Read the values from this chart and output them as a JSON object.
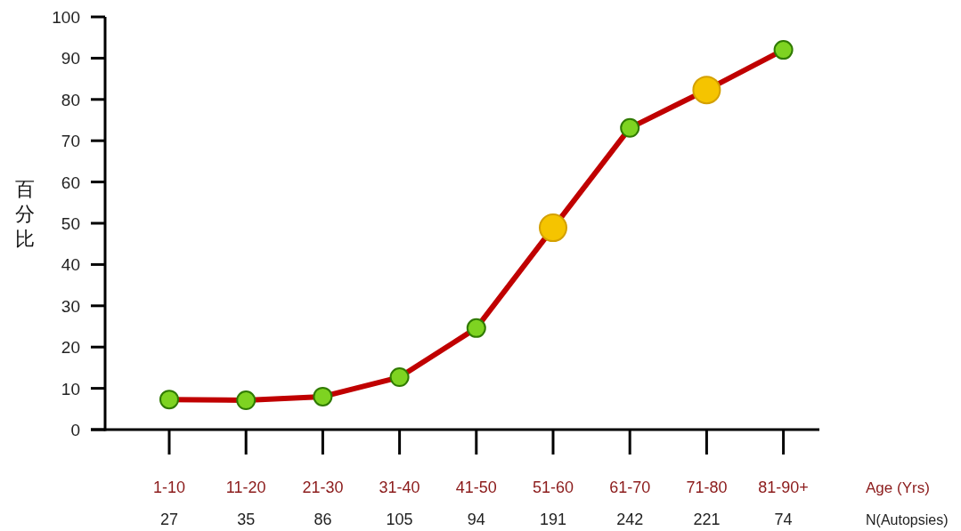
{
  "chart_data": {
    "type": "line",
    "ylabel": "百分比",
    "xlabel": "Age (Yrs)",
    "categories": [
      "1-10",
      "11-20",
      "21-30",
      "31-40",
      "41-50",
      "51-60",
      "61-70",
      "71-80",
      "81-90+"
    ],
    "series": [
      {
        "color": "#c00000",
        "values": [
          7.3,
          7.1,
          8.0,
          12.7,
          24.6,
          48.9,
          73.1,
          82.3,
          92.0
        ],
        "colors": [
          "#7ed321",
          "#7ed321",
          "#7ed321",
          "#7ed321",
          "#7ed321",
          "#f5c400",
          "#7ed321",
          "#f5c400",
          "#7ed321"
        ]
      }
    ],
    "ylim": [
      0,
      100
    ],
    "yticks": [
      0,
      10,
      20,
      30,
      40,
      50,
      60,
      70,
      80,
      90,
      100
    ],
    "marker": "circle",
    "line_style": "solid",
    "grid": false,
    "annotations": [
      "27",
      "35",
      "86",
      "105",
      "94",
      "191",
      "242",
      "221",
      "74",
      "N(Autopsies)"
    ]
  }
}
